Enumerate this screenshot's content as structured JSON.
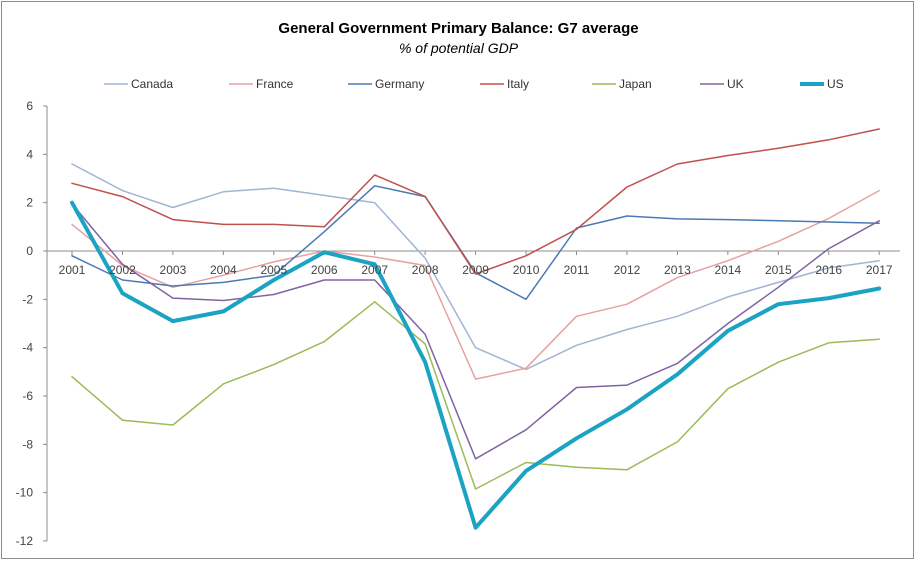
{
  "chart_data": {
    "type": "line",
    "title": "General Government Primary Balance: G7 average",
    "subtitle": "% of potential GDP",
    "xlabel": "",
    "ylabel": "",
    "categories": [
      "2001",
      "2002",
      "2003",
      "2004",
      "2005",
      "2006",
      "2007",
      "2008",
      "2009",
      "2010",
      "2011",
      "2012",
      "2013",
      "2014",
      "2015",
      "2016",
      "2017"
    ],
    "ylim": [
      -12,
      6
    ],
    "yticks": [
      6,
      4,
      2,
      0,
      -2,
      -4,
      -6,
      -8,
      -10,
      -12
    ],
    "legend_position": "top",
    "series": [
      {
        "name": "Canada",
        "color": "#9fb6d3",
        "width": 1.5,
        "values": [
          3.6,
          2.5,
          1.8,
          2.45,
          2.6,
          2.3,
          2.0,
          -0.3,
          -4.0,
          -4.9,
          -3.9,
          -3.25,
          -2.7,
          -1.9,
          -1.3,
          -0.7,
          -0.4
        ]
      },
      {
        "name": "France",
        "color": "#e8a0a0",
        "width": 1.5,
        "values": [
          1.1,
          -0.6,
          -1.5,
          -1.0,
          -0.45,
          0.0,
          -0.25,
          -0.6,
          -5.3,
          -4.85,
          -2.7,
          -2.2,
          -1.1,
          -0.4,
          0.4,
          1.35,
          2.5
        ]
      },
      {
        "name": "Germany",
        "color": "#4a7ab3",
        "width": 1.5,
        "values": [
          -0.2,
          -1.2,
          -1.45,
          -1.3,
          -1.0,
          0.8,
          2.7,
          2.25,
          -0.9,
          -2.0,
          0.95,
          1.45,
          1.33,
          1.3,
          1.25,
          1.2,
          1.15
        ]
      },
      {
        "name": "Italy",
        "color": "#c0504d",
        "width": 1.5,
        "values": [
          2.8,
          2.25,
          1.3,
          1.1,
          1.1,
          1.0,
          3.15,
          2.25,
          -0.95,
          -0.2,
          0.9,
          2.65,
          3.6,
          3.95,
          4.25,
          4.6,
          5.05
        ]
      },
      {
        "name": "Japan",
        "color": "#9bbb59",
        "width": 1.5,
        "values": [
          -5.2,
          -7.0,
          -7.2,
          -5.5,
          -4.7,
          -3.75,
          -2.1,
          -3.85,
          -9.85,
          -8.75,
          -8.95,
          -9.05,
          -7.9,
          -5.7,
          -4.6,
          -3.8,
          -3.65
        ]
      },
      {
        "name": "UK",
        "color": "#8064a2",
        "width": 1.5,
        "values": [
          1.95,
          -0.55,
          -1.95,
          -2.05,
          -1.8,
          -1.2,
          -1.2,
          -3.45,
          -8.6,
          -7.4,
          -5.65,
          -5.55,
          -4.65,
          -3.0,
          -1.5,
          0.1,
          1.25
        ]
      },
      {
        "name": "US",
        "color": "#1aa3c2",
        "width": 4,
        "values": [
          2.0,
          -1.75,
          -2.9,
          -2.5,
          -1.2,
          -0.05,
          -0.55,
          -4.6,
          -11.45,
          -9.1,
          -7.75,
          -6.55,
          -5.1,
          -3.3,
          -2.2,
          -1.95,
          -1.55
        ]
      }
    ]
  }
}
